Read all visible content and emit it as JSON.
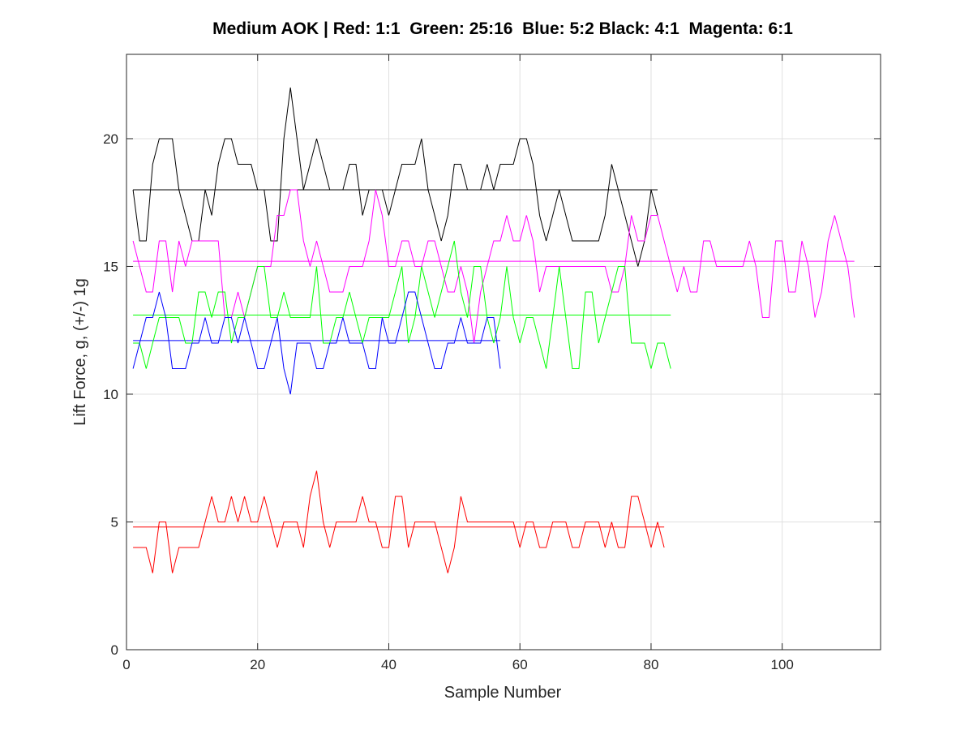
{
  "chart_data": {
    "type": "line",
    "title": "Medium AOK | Red: 1:1  Green: 25:16  Blue: 5:2 Black: 4:1  Magenta: 6:1",
    "xlabel": "Sample Number",
    "ylabel": "Lift Force, g, (+/-) 1g",
    "xlim": [
      0,
      115
    ],
    "ylim": [
      0,
      23.3
    ],
    "xticks": [
      0,
      20,
      40,
      60,
      80,
      100
    ],
    "yticks": [
      0,
      5,
      10,
      15,
      20
    ],
    "grid": true,
    "series": [
      {
        "color": "#000000",
        "mean": 18.0,
        "values": [
          18,
          16,
          16,
          19,
          20,
          20,
          20,
          18,
          17,
          16,
          16,
          18,
          17,
          19,
          20,
          20,
          19,
          19,
          19,
          18,
          18,
          16,
          16,
          20,
          22,
          20,
          18,
          19,
          20,
          19,
          18,
          18,
          18,
          19,
          19,
          17,
          18,
          18,
          18,
          17,
          18,
          19,
          19,
          19,
          20,
          18,
          17,
          16,
          17,
          19,
          19,
          18,
          18,
          18,
          19,
          18,
          19,
          19,
          19,
          20,
          20,
          19,
          17,
          16,
          17,
          18,
          17,
          16,
          16,
          16,
          16,
          16,
          17,
          19,
          18,
          17,
          16,
          15,
          16,
          18,
          17
        ]
      },
      {
        "color": "#ff00ff",
        "mean": 15.2,
        "values": [
          16,
          15,
          14,
          14,
          16,
          16,
          14,
          16,
          15,
          16,
          16,
          16,
          16,
          16,
          13,
          13,
          14,
          13,
          14,
          15,
          15,
          15,
          17,
          17,
          18,
          18,
          16,
          15,
          16,
          15,
          14,
          14,
          14,
          15,
          15,
          15,
          16,
          18,
          17,
          15,
          15,
          16,
          16,
          15,
          15,
          16,
          16,
          15,
          14,
          14,
          15,
          14,
          12,
          14,
          15,
          16,
          16,
          17,
          16,
          16,
          17,
          16,
          14,
          15,
          15,
          15,
          15,
          15,
          15,
          15,
          15,
          15,
          15,
          14,
          14,
          15,
          17,
          16,
          16,
          17,
          17,
          16,
          15,
          14,
          15,
          14,
          14,
          16,
          16,
          15,
          15,
          15,
          15,
          15,
          16,
          15,
          13,
          13,
          16,
          16,
          14,
          14,
          16,
          15,
          13,
          14,
          16,
          17,
          16,
          15,
          13
        ]
      },
      {
        "color": "#00ff00",
        "mean": 13.1,
        "values": [
          12,
          12,
          11,
          12,
          13,
          13,
          13,
          13,
          12,
          12,
          14,
          14,
          13,
          14,
          14,
          12,
          13,
          13,
          14,
          15,
          15,
          13,
          13,
          14,
          13,
          13,
          13,
          13,
          15,
          12,
          12,
          13,
          13,
          14,
          13,
          12,
          13,
          13,
          13,
          13,
          14,
          15,
          12,
          13,
          15,
          14,
          13,
          14,
          15,
          16,
          14,
          13,
          15,
          15,
          13,
          12,
          13,
          15,
          13,
          12,
          13,
          13,
          12,
          11,
          13,
          15,
          13,
          11,
          11,
          14,
          14,
          12,
          13,
          14,
          15,
          15,
          12,
          12,
          12,
          11,
          12,
          12,
          11
        ]
      },
      {
        "color": "#0000ff",
        "mean": 12.1,
        "values": [
          11,
          12,
          13,
          13,
          14,
          13,
          11,
          11,
          11,
          12,
          12,
          13,
          12,
          12,
          13,
          13,
          12,
          13,
          12,
          11,
          11,
          12,
          13,
          11,
          10,
          12,
          12,
          12,
          11,
          11,
          12,
          12,
          13,
          12,
          12,
          12,
          11,
          11,
          13,
          12,
          12,
          13,
          14,
          14,
          13,
          12,
          11,
          11,
          12,
          12,
          13,
          12,
          12,
          12,
          13,
          13,
          11
        ]
      },
      {
        "color": "#ff0000",
        "mean": 4.8,
        "values": [
          4,
          4,
          4,
          3,
          5,
          5,
          3,
          4,
          4,
          4,
          4,
          5,
          6,
          5,
          5,
          6,
          5,
          6,
          5,
          5,
          6,
          5,
          4,
          5,
          5,
          5,
          4,
          6,
          7,
          5,
          4,
          5,
          5,
          5,
          5,
          6,
          5,
          5,
          4,
          4,
          6,
          6,
          4,
          5,
          5,
          5,
          5,
          4,
          3,
          4,
          6,
          5,
          5,
          5,
          5,
          5,
          5,
          5,
          5,
          4,
          5,
          5,
          4,
          4,
          5,
          5,
          5,
          4,
          4,
          5,
          5,
          5,
          4,
          5,
          4,
          4,
          6,
          6,
          5,
          4,
          5,
          4
        ]
      }
    ]
  }
}
